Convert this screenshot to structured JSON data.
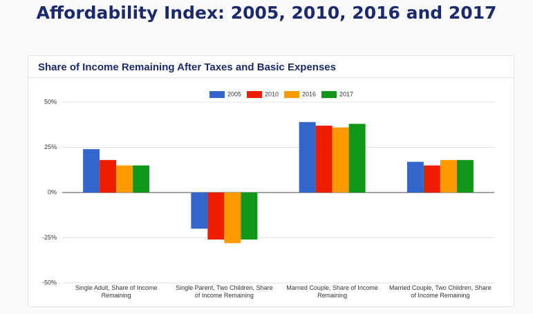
{
  "title": "Affordability Index: 2005, 2010, 2016 and 2017",
  "chart_data": {
    "type": "bar",
    "title": "Share of Income Remaining After Taxes and Basic Expenses",
    "categories": [
      "Single Adult, Share of Income Remaining",
      "Single Parent, Two Children, Share of Income Remaining",
      "Married Couple, Share of Income Remaining",
      "Married Couple, Two Children, Share of Income Remaining"
    ],
    "series": [
      {
        "name": "2005",
        "color": "#3366cc",
        "values": [
          24,
          -20,
          39,
          17
        ]
      },
      {
        "name": "2010",
        "color": "#ee1c00",
        "values": [
          18,
          -26,
          37,
          15
        ]
      },
      {
        "name": "2016",
        "color": "#ff9900",
        "values": [
          15,
          -28,
          36,
          18
        ]
      },
      {
        "name": "2017",
        "color": "#109618",
        "values": [
          15,
          -26,
          38,
          18
        ]
      }
    ],
    "ylim": [
      -50,
      50
    ],
    "yticks": [
      {
        "value": 50,
        "label": "50%"
      },
      {
        "value": 25,
        "label": "25%"
      },
      {
        "value": 0,
        "label": "0%"
      },
      {
        "value": -25,
        "label": "-25%"
      },
      {
        "value": -50,
        "label": "-50%"
      }
    ],
    "grid": true,
    "legend": "top"
  }
}
